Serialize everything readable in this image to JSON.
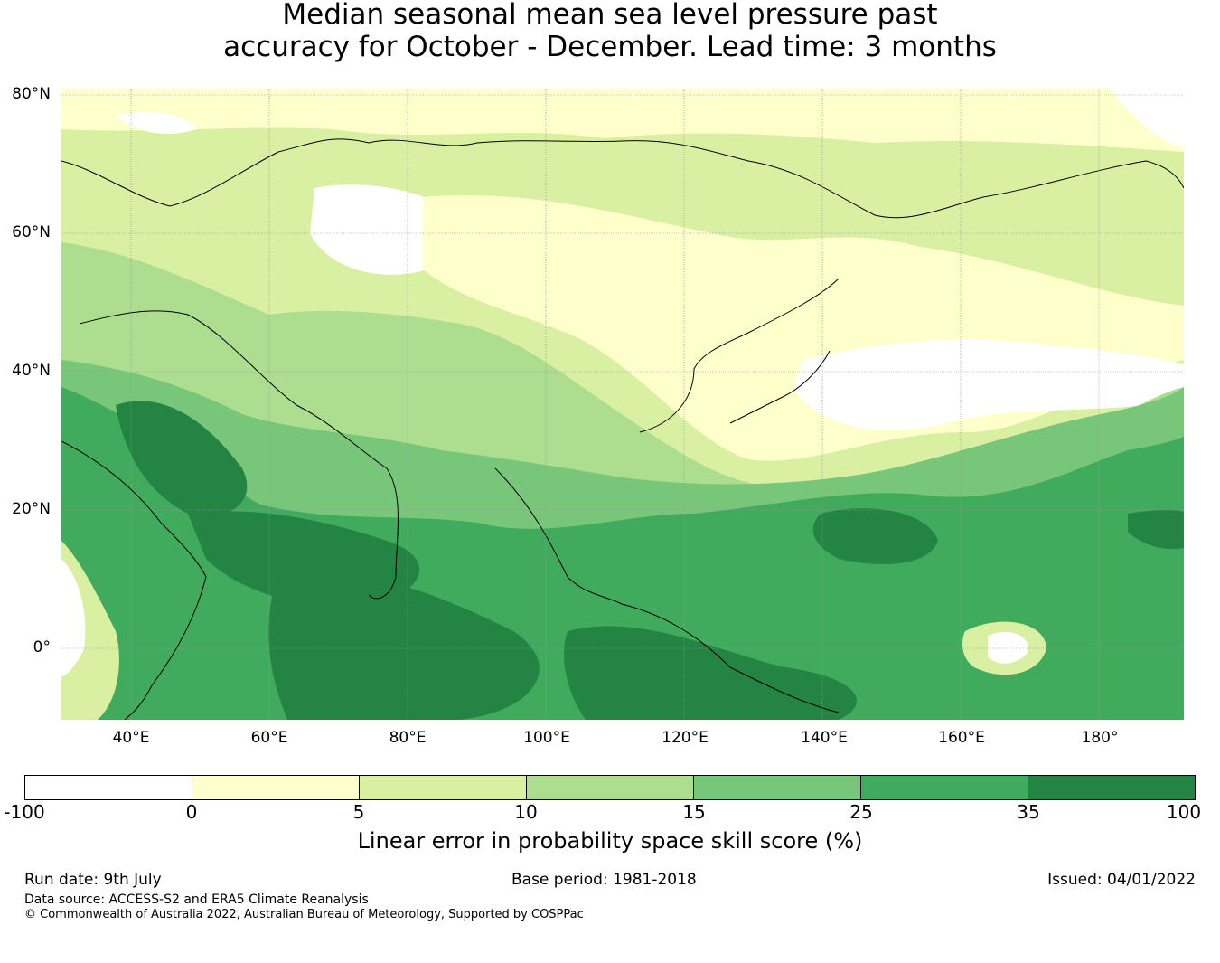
{
  "title": {
    "line1": "Median seasonal mean sea level pressure past",
    "line2": "accuracy for October - December. Lead time: 3 months"
  },
  "map": {
    "lat_labels": [
      "80°N",
      "60°N",
      "40°N",
      "20°N",
      "0°"
    ],
    "lon_labels": [
      "40°E",
      "60°E",
      "80°E",
      "100°E",
      "120°E",
      "140°E",
      "160°E",
      "180°"
    ]
  },
  "colorbar": {
    "ticks": [
      "-100",
      "0",
      "5",
      "10",
      "15",
      "25",
      "35",
      "100"
    ],
    "colors": [
      "#ffffff",
      "#ffffcc",
      "#d9f0a3",
      "#addd8e",
      "#78c679",
      "#41ab5d",
      "#238443"
    ],
    "label": "Linear error in probability space skill score (%)"
  },
  "footer": {
    "run_date": "Run date: 9th July",
    "base_period": "Base period: 1981-2018",
    "issued": "Issued: 04/01/2022",
    "data_source": "Data source: ACCESS-S2 and ERA5 Climate Reanalysis",
    "copyright": "© Commonwealth of Australia 2022, Australian Bureau of Meteorology, Supported by COSPPac"
  }
}
